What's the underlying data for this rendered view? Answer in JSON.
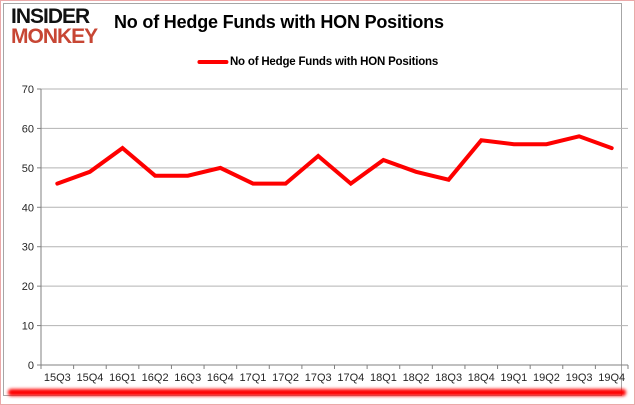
{
  "branding": {
    "logo_line1": "INSIDER",
    "logo_line2": "MONKEY",
    "logo_color_top": "#111111",
    "logo_color_bottom": "#c74634"
  },
  "header": {
    "title": "No of Hedge Funds with HON Positions"
  },
  "legend": {
    "label": "No of Hedge Funds with HON Positions",
    "swatch_color": "#fe0000"
  },
  "accents": {
    "outer_border_color": "#eba9a9",
    "bottom_bar_color": "#fe0000"
  },
  "chart_data": {
    "type": "line",
    "title": "No of Hedge Funds with HON Positions",
    "categories": [
      "15Q3",
      "15Q4",
      "16Q1",
      "16Q2",
      "16Q3",
      "16Q4",
      "17Q1",
      "17Q2",
      "17Q3",
      "17Q4",
      "18Q1",
      "18Q2",
      "18Q3",
      "18Q4",
      "19Q1",
      "19Q2",
      "19Q3",
      "19Q4"
    ],
    "series": [
      {
        "name": "No of Hedge Funds with HON Positions",
        "color": "#fe0000",
        "values": [
          46,
          49,
          55,
          48,
          48,
          50,
          46,
          46,
          53,
          46,
          52,
          49,
          47,
          57,
          56,
          56,
          58,
          55
        ]
      }
    ],
    "xlabel": "",
    "ylabel": "",
    "ylim": [
      0,
      70
    ],
    "ytick_interval": 10,
    "grid": true,
    "grid_color": "#b3b3b3",
    "axis_color": "#808080",
    "legend_position": "top-center",
    "line_width": 4
  }
}
